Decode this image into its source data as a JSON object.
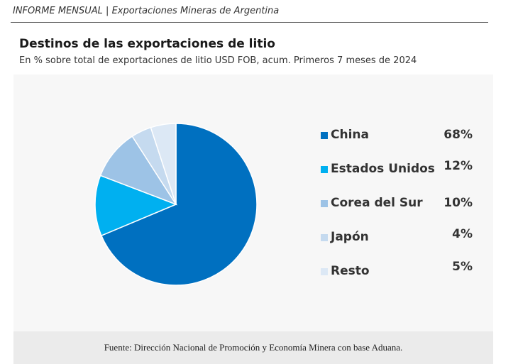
{
  "header": {
    "text": "INFORME MENSUAL |  Exportaciones Mineras de Argentina"
  },
  "chart_data": {
    "type": "pie",
    "title": "Destinos de las exportaciones de litio",
    "subtitle": "En % sobre total de exportaciones de litio USD FOB, acum. Primeros 7 meses de  2024",
    "legend_position": "right",
    "slices": [
      {
        "name": "China",
        "value": 68,
        "label": "68%",
        "color": "#0070C0"
      },
      {
        "name": "Estados Unidos",
        "value": 12,
        "label": "12%",
        "color": "#00B0F0"
      },
      {
        "name": "Corea del Sur",
        "value": 10,
        "label": "10%",
        "color": "#9DC3E6"
      },
      {
        "name": "Japón",
        "value": 4,
        "label": "4%",
        "color": "#C5DAEF"
      },
      {
        "name": "Resto",
        "value": 5,
        "label": "5%",
        "color": "#DCE8F5"
      }
    ]
  },
  "footer": {
    "source": "Fuente: Dirección Nacional de Promoción y Economía Minera con base Aduana."
  }
}
